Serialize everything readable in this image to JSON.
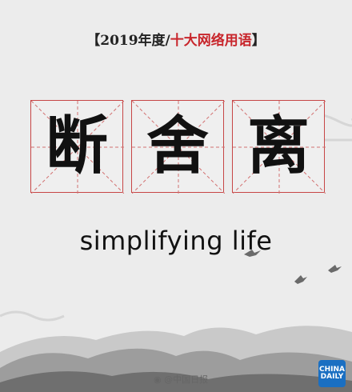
{
  "header": {
    "open_bracket": "【",
    "year_label": "2019年度/",
    "title": "十大网络用语",
    "close_bracket": "】"
  },
  "characters": [
    "断",
    "舍",
    "离"
  ],
  "subtitle": "simplifying life",
  "footer": {
    "weibo_handle": "@中国日报"
  },
  "logo": {
    "line1": "CHINA",
    "line2": "DAILY"
  },
  "colors": {
    "accent_red": "#c8262c",
    "grid_red": "#c74646",
    "logo_blue": "#1a6fc2"
  }
}
